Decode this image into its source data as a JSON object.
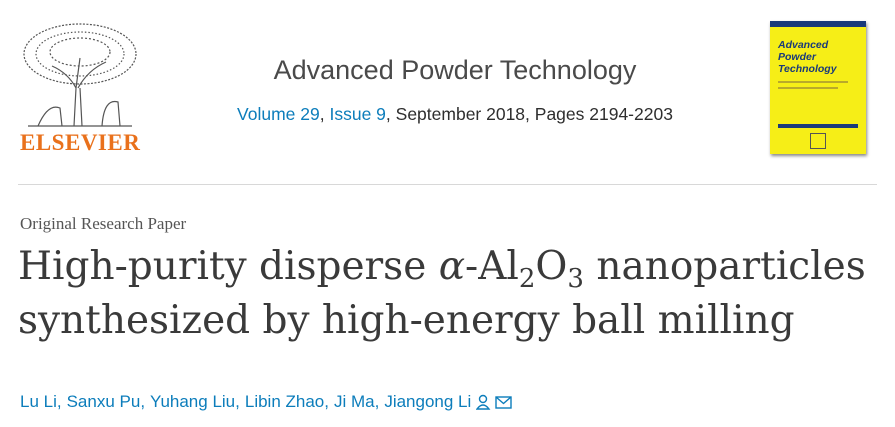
{
  "header": {
    "publisher": "ELSEVIER",
    "journal": "Advanced Powder Technology",
    "volume": "Volume 29",
    "issue": "Issue 9",
    "details": ", September 2018, Pages 2194-2203",
    "cover_title": "Advanced Powder Technology"
  },
  "article": {
    "type": "Original Research Paper",
    "title": [
      "High-purity disperse ",
      "α",
      "-Al",
      "2",
      "O",
      "3",
      " nanoparticles",
      "synthesized by high-energy ball milling"
    ],
    "authors": [
      "Lu Li,",
      "Sanxu Pu,",
      "Yuhang Liu,",
      "Libin Zhao,",
      "Ji Ma,",
      "Jiangong Li"
    ]
  }
}
